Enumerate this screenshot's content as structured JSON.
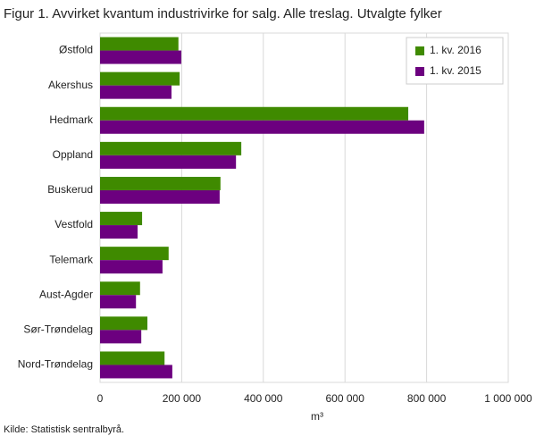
{
  "chart_data": {
    "type": "hbar",
    "title": "Figur 1. Avvirket kvantum industrivirke for salg. Alle treslag. Utvalgte fylker",
    "x_label": "m³",
    "source": "Kilde: Statistisk sentralbyrå.",
    "categories": [
      "Østfold",
      "Akershus",
      "Hedmark",
      "Oppland",
      "Buskerud",
      "Vestfold",
      "Telemark",
      "Aust-Agder",
      "Sør-Trøndelag",
      "Nord-Trøndelag"
    ],
    "series": [
      {
        "name": "1. kv. 2016",
        "color": "#3f8a00",
        "values": [
          192000,
          195000,
          755000,
          346000,
          295000,
          103000,
          168000,
          98000,
          116000,
          158000
        ]
      },
      {
        "name": "1. kv. 2015",
        "color": "#6c007f",
        "values": [
          199000,
          175000,
          794000,
          333000,
          293000,
          92000,
          153000,
          88000,
          101000,
          177000
        ]
      }
    ],
    "xlim": [
      0,
      1000000
    ],
    "xticks": [
      0,
      {
        "value": 200000,
        "label": "200 000"
      },
      {
        "value": 400000,
        "label": "400 000"
      },
      {
        "value": 600000,
        "label": "600 000"
      },
      {
        "value": 800000,
        "label": "800 000"
      },
      {
        "value": 1000000,
        "label": "1 000 000"
      }
    ],
    "grid": true,
    "legend": "top-right"
  }
}
